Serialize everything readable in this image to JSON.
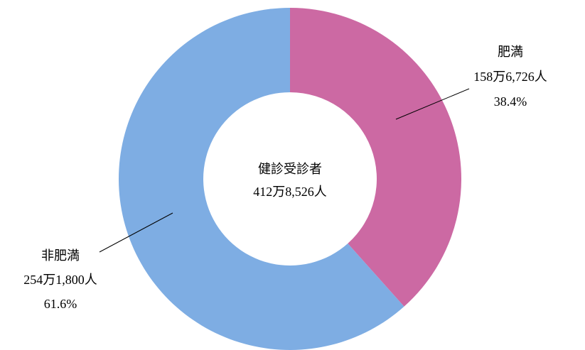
{
  "chart_data": {
    "type": "pie",
    "categories": [
      "肥満",
      "非肥満"
    ],
    "values": [
      38.4,
      61.6
    ],
    "value_labels": [
      "38.4%",
      "61.6%"
    ],
    "count_labels": [
      "158万6,726人",
      "254万1,800人"
    ],
    "colors": [
      "#cc69a3",
      "#7eade3"
    ],
    "center_label": [
      "健診受診者",
      "412万8,526人"
    ]
  }
}
